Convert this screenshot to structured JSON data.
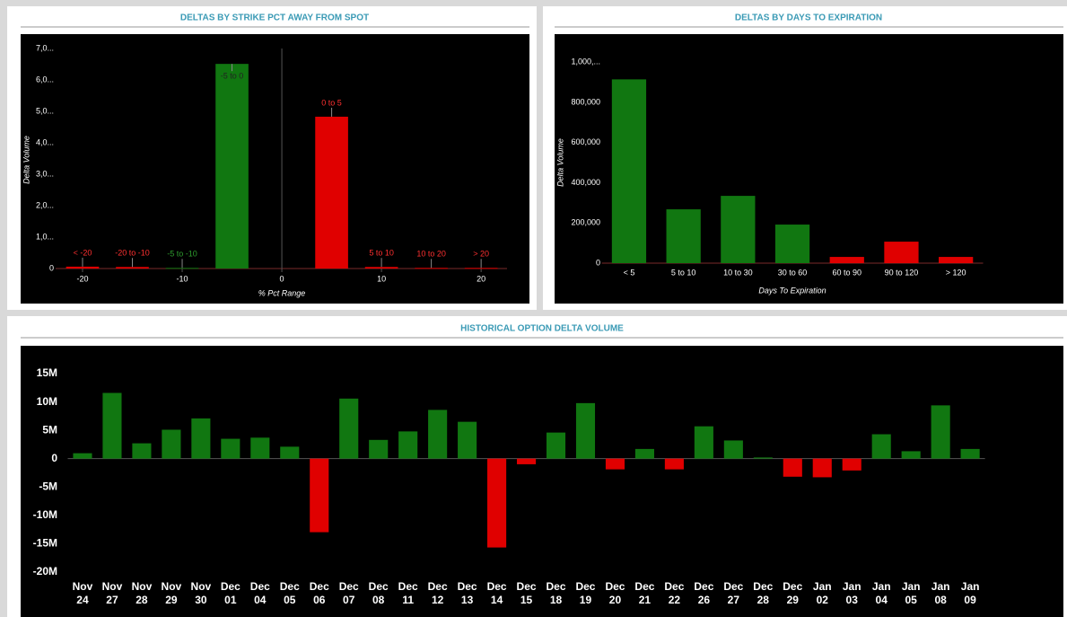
{
  "chart_data": [
    {
      "type": "bar",
      "title": "DELTAS BY STRIKE PCT AWAY FROM SPOT",
      "x_label": "% Pct Range",
      "y_label": "Delta Volume",
      "x": [
        -20,
        -15,
        -10,
        -5,
        5,
        10,
        15,
        20
      ],
      "categories": [
        "< -20",
        "-20 to -10",
        "-5 to -10",
        "-5 to 0",
        "0 to 5",
        "5 to 10",
        "10 to 20",
        "> 20"
      ],
      "values": [
        60000,
        50000,
        20000,
        6510000,
        4830000,
        50000,
        20000,
        20000
      ],
      "colors": [
        "#e00000",
        "#e00000",
        "#117711",
        "#117711",
        "#e00000",
        "#e00000",
        "#e00000",
        "#e00000"
      ],
      "xlim": [
        -22.7,
        22.6
      ],
      "xticks": [
        -20,
        -10,
        0,
        10,
        20
      ],
      "ylim": [
        0,
        7000000
      ],
      "yticks": [
        0,
        {
          "value": 1000000,
          "label": "1,0..."
        },
        {
          "value": 2000000,
          "label": "2,0..."
        },
        {
          "value": 3000000,
          "label": "3,0..."
        },
        {
          "value": 4000000,
          "label": "4,0..."
        },
        {
          "value": 5000000,
          "label": "5,0..."
        },
        {
          "value": 6000000,
          "label": "6,0..."
        },
        {
          "value": 7000000,
          "label": "7,0..."
        }
      ]
    },
    {
      "type": "bar",
      "title": "DELTAS BY DAYS TO EXPIRATION",
      "x_label": "Days To Expiration",
      "y_label": "Delta Volume",
      "categories": [
        "< 5",
        "5 to 10",
        "10 to 30",
        "30 to 60",
        "60 to 90",
        "90 to 120",
        "> 120"
      ],
      "values": [
        915000,
        268000,
        335000,
        192000,
        31000,
        107000,
        31000
      ],
      "colors": [
        "#117711",
        "#117711",
        "#117711",
        "#117711",
        "#e00000",
        "#e00000",
        "#e00000"
      ],
      "ylim": [
        0,
        1100000
      ],
      "yticks": [
        0,
        {
          "value": 200000,
          "label": "200,000"
        },
        {
          "value": 400000,
          "label": "400,000"
        },
        {
          "value": 600000,
          "label": "600,000"
        },
        {
          "value": 800000,
          "label": "800,000"
        },
        {
          "value": 1000000,
          "label": "1,000,..."
        }
      ]
    },
    {
      "type": "bar",
      "title": "HISTORICAL OPTION DELTA VOLUME",
      "categories": [
        [
          "Nov",
          "24"
        ],
        [
          "Nov",
          "27"
        ],
        [
          "Nov",
          "28"
        ],
        [
          "Nov",
          "29"
        ],
        [
          "Nov",
          "30"
        ],
        [
          "Dec",
          "01"
        ],
        [
          "Dec",
          "04"
        ],
        [
          "Dec",
          "05"
        ],
        [
          "Dec",
          "06"
        ],
        [
          "Dec",
          "07"
        ],
        [
          "Dec",
          "08"
        ],
        [
          "Dec",
          "11"
        ],
        [
          "Dec",
          "12"
        ],
        [
          "Dec",
          "13"
        ],
        [
          "Dec",
          "14"
        ],
        [
          "Dec",
          "15"
        ],
        [
          "Dec",
          "18"
        ],
        [
          "Dec",
          "19"
        ],
        [
          "Dec",
          "20"
        ],
        [
          "Dec",
          "21"
        ],
        [
          "Dec",
          "22"
        ],
        [
          "Dec",
          "26"
        ],
        [
          "Dec",
          "27"
        ],
        [
          "Dec",
          "28"
        ],
        [
          "Dec",
          "29"
        ],
        [
          "Jan",
          "02"
        ],
        [
          "Jan",
          "03"
        ],
        [
          "Jan",
          "04"
        ],
        [
          "Jan",
          "05"
        ],
        [
          "Jan",
          "08"
        ],
        [
          "Jan",
          "09"
        ]
      ],
      "values": [
        0.95,
        11.6,
        2.7,
        5.1,
        7.1,
        3.5,
        3.7,
        2.1,
        -13.0,
        10.6,
        3.3,
        4.8,
        8.6,
        6.5,
        -15.7,
        -1.0,
        4.6,
        9.8,
        -1.9,
        1.7,
        -1.9,
        5.7,
        3.2,
        0.2,
        -3.2,
        -3.3,
        -2.1,
        4.3,
        1.3,
        9.4,
        1.7
      ],
      "positive_color": "#117711",
      "negative_color": "#e00000",
      "ylim": [
        -21,
        18.5
      ],
      "yticks": [
        {
          "value": -20,
          "label": "-20M"
        },
        {
          "value": -15,
          "label": "-15M"
        },
        {
          "value": -10,
          "label": "-10M"
        },
        {
          "value": -5,
          "label": "-5M"
        },
        0,
        {
          "value": 5,
          "label": "5M"
        },
        {
          "value": 10,
          "label": "10M"
        },
        {
          "value": 15,
          "label": "15M"
        }
      ]
    }
  ]
}
